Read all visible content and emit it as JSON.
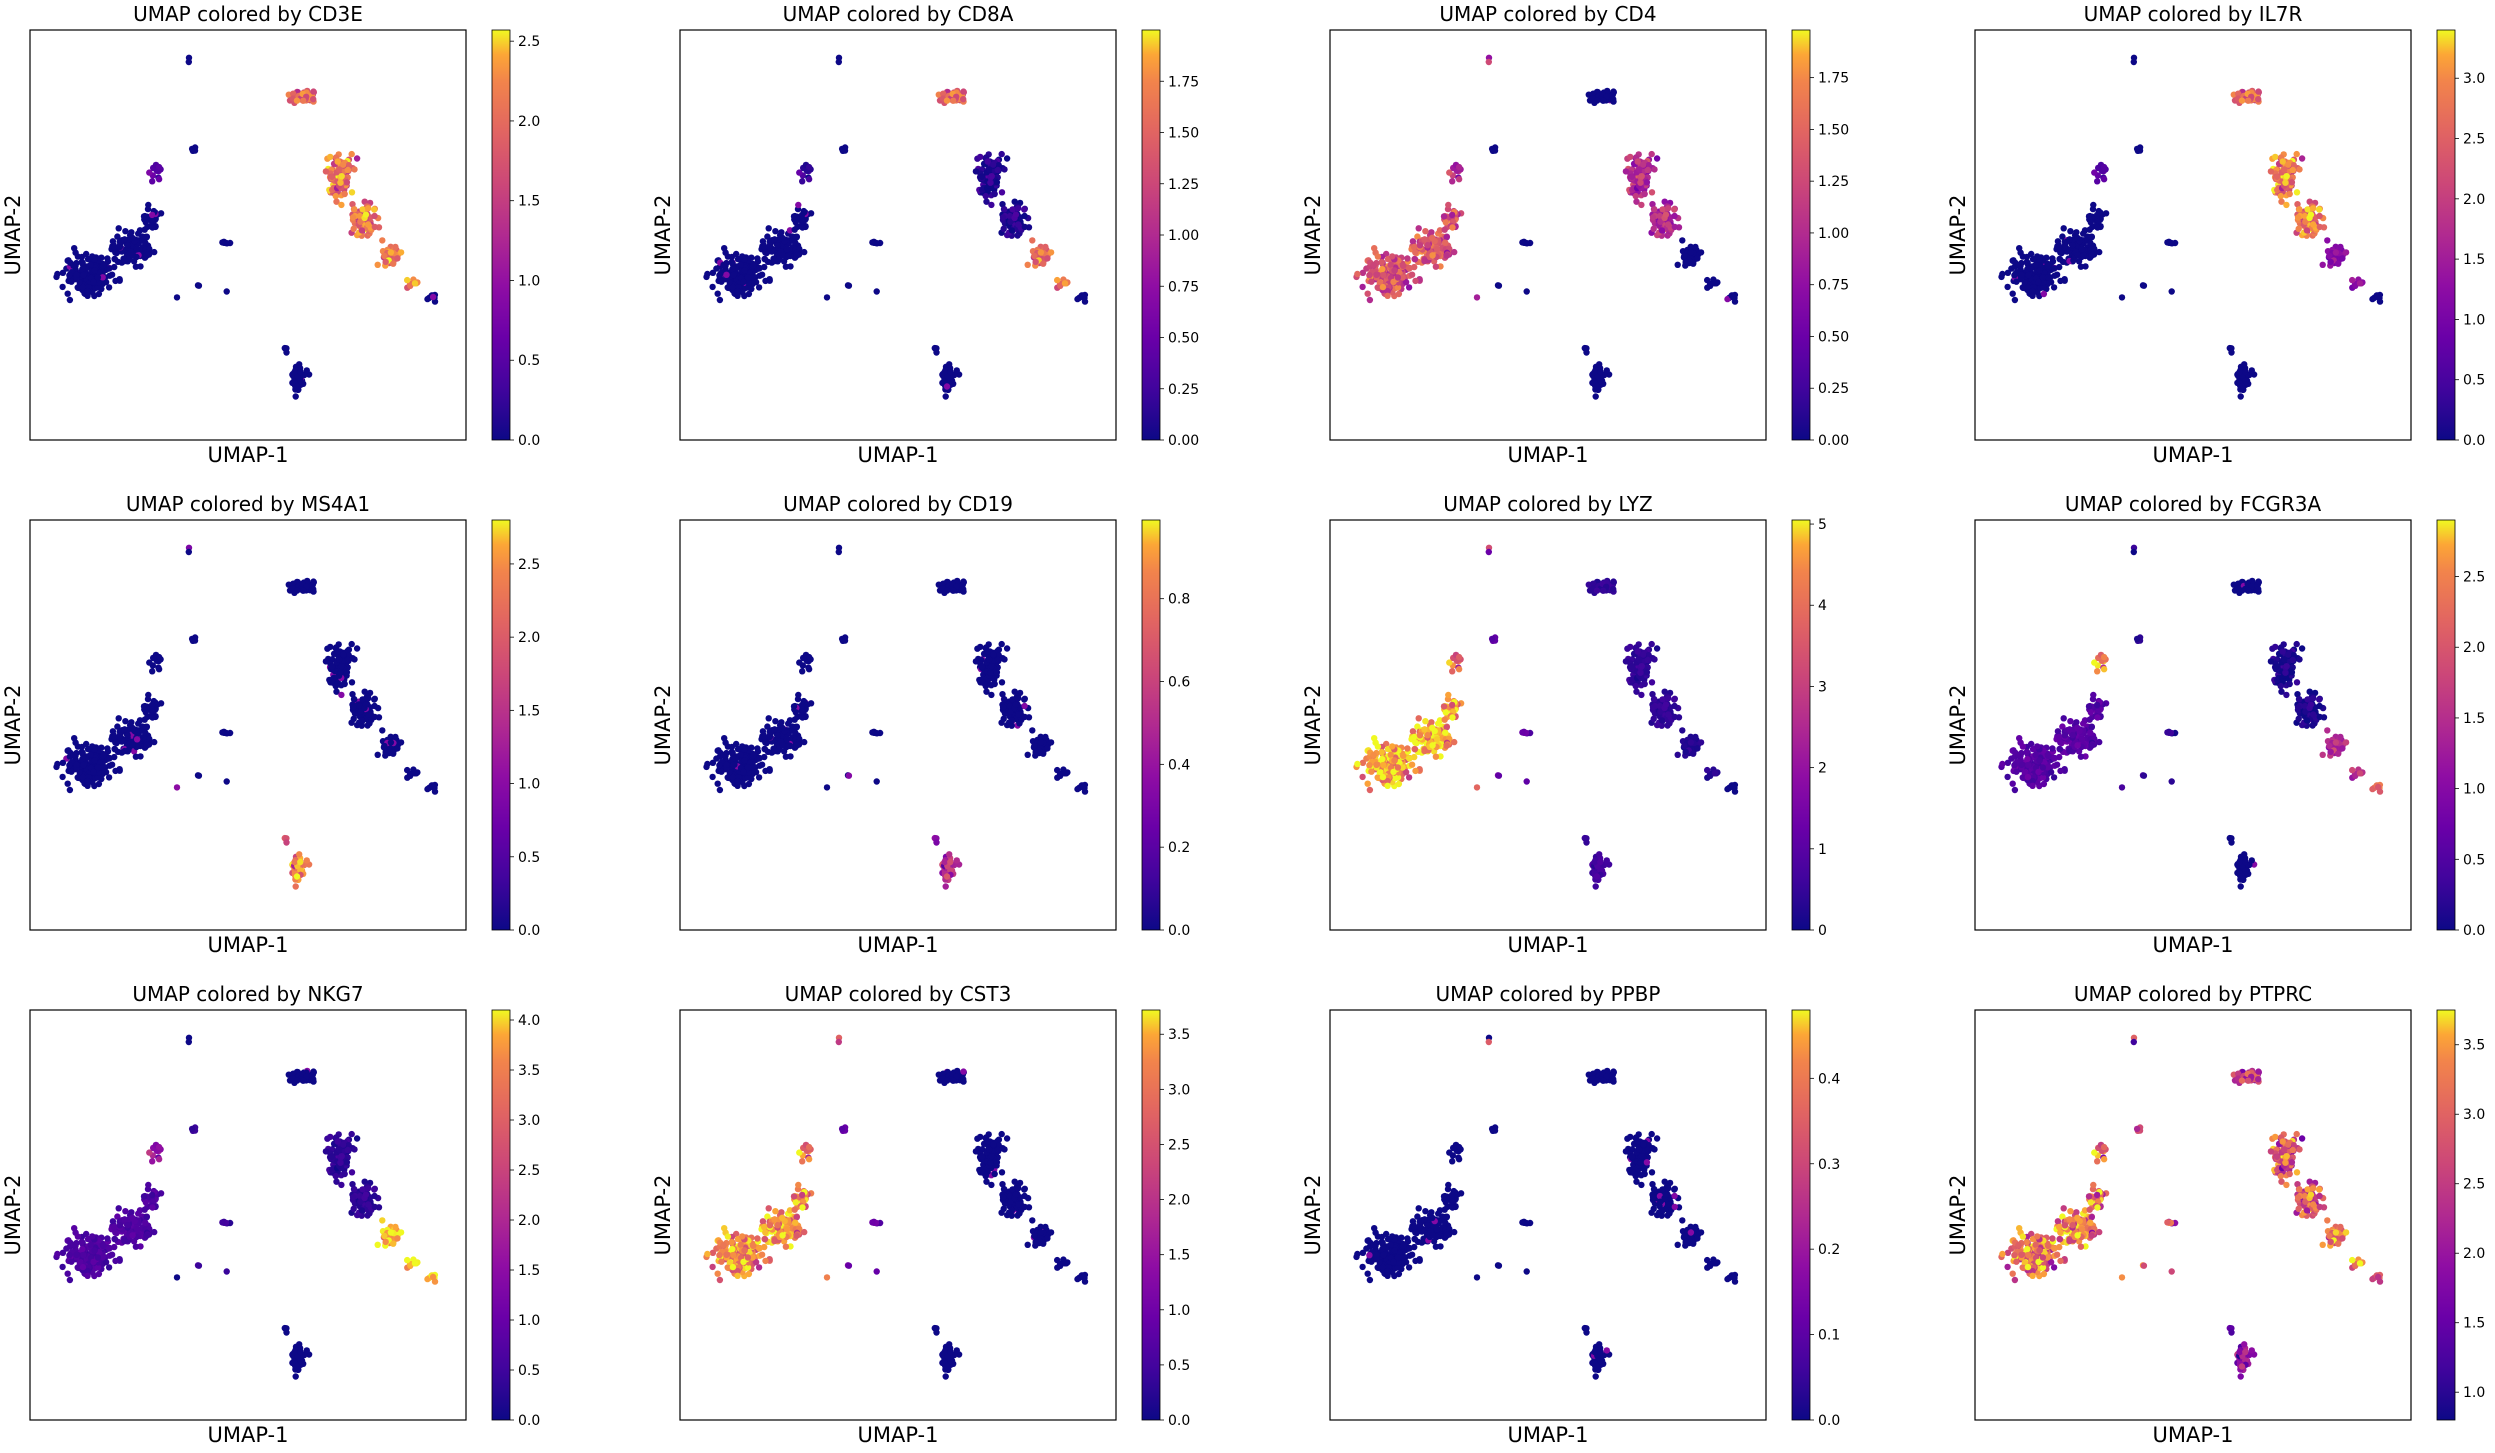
{
  "chart_data": [
    {
      "type": "scatter",
      "gene": "CD3E",
      "title": "UMAP colored by CD3E",
      "xlabel": "UMAP-1",
      "ylabel": "UMAP-2",
      "colormap": "plasma",
      "color_range": [
        0,
        2.57
      ],
      "colorbar_ticks": [
        "0.0",
        "0.5",
        "1.0",
        "1.5",
        "2.0",
        "2.5"
      ],
      "expr": {
        "big": 0.0,
        "small_top": 0.5,
        "tail": 0.0,
        "dots": 0.0,
        "platelet": 0.0,
        "nk_top": 1.8,
        "tcell": 1.9,
        "cd8": 1.8,
        "bottom": 0.0,
        "tip": 0.0
      }
    },
    {
      "type": "scatter",
      "gene": "CD8A",
      "title": "UMAP colored by CD8A",
      "xlabel": "UMAP-1",
      "ylabel": "UMAP-2",
      "colormap": "plasma",
      "color_range": [
        0,
        2.0
      ],
      "colorbar_ticks": [
        "0.00",
        "0.25",
        "0.50",
        "0.75",
        "1.00",
        "1.25",
        "1.50",
        "1.75"
      ],
      "expr": {
        "big": 0.0,
        "small_top": 0.2,
        "tail": 0.0,
        "dots": 0.0,
        "platelet": 0.0,
        "nk_top": 1.4,
        "tcell": 0.1,
        "cd8": 1.3,
        "bottom": 0.0,
        "tip": 0.0
      }
    },
    {
      "type": "scatter",
      "gene": "CD4",
      "title": "UMAP colored by CD4",
      "xlabel": "UMAP-1",
      "ylabel": "UMAP-2",
      "colormap": "plasma",
      "color_range": [
        0,
        1.98
      ],
      "colorbar_ticks": [
        "0.00",
        "0.25",
        "0.50",
        "0.75",
        "1.00",
        "1.25",
        "1.50",
        "1.75"
      ],
      "expr": {
        "big": 1.2,
        "small_top": 0.9,
        "tail": 0.0,
        "dots": 0.7,
        "platelet": 1.5,
        "nk_top": 0.0,
        "tcell": 0.9,
        "cd8": 0.0,
        "bottom": 0.0,
        "tip": 0.0
      }
    },
    {
      "type": "scatter",
      "gene": "IL7R",
      "title": "UMAP colored by IL7R",
      "xlabel": "UMAP-1",
      "ylabel": "UMAP-2",
      "colormap": "plasma",
      "color_range": [
        0,
        3.4
      ],
      "colorbar_ticks": [
        "0.0",
        "0.5",
        "1.0",
        "1.5",
        "2.0",
        "2.5",
        "3.0"
      ],
      "expr": {
        "big": 0.0,
        "small_top": 0.6,
        "tail": 0.0,
        "dots": 0.0,
        "platelet": 0.0,
        "nk_top": 2.4,
        "tcell": 2.6,
        "cd8": 1.0,
        "bottom": 0.0,
        "tip": 0.0
      }
    },
    {
      "type": "scatter",
      "gene": "MS4A1",
      "title": "UMAP colored by MS4A1",
      "xlabel": "UMAP-1",
      "ylabel": "UMAP-2",
      "colormap": "plasma",
      "color_range": [
        0,
        2.8
      ],
      "colorbar_ticks": [
        "0.0",
        "0.5",
        "1.0",
        "1.5",
        "2.0",
        "2.5"
      ],
      "expr": {
        "big": 0.0,
        "small_top": 0.0,
        "tail": 0.0,
        "dots": 0.8,
        "platelet": 0.0,
        "nk_top": 0.0,
        "tcell": 0.0,
        "cd8": 0.0,
        "bottom": 2.2,
        "tip": 0.0
      }
    },
    {
      "type": "scatter",
      "gene": "CD19",
      "title": "UMAP colored by CD19",
      "xlabel": "UMAP-1",
      "ylabel": "UMAP-2",
      "colormap": "plasma",
      "color_range": [
        0,
        0.99
      ],
      "colorbar_ticks": [
        "0.0",
        "0.2",
        "0.4",
        "0.6",
        "0.8"
      ],
      "expr": {
        "big": 0.0,
        "small_top": 0.0,
        "tail": 0.0,
        "dots": 0.0,
        "platelet": 0.0,
        "nk_top": 0.0,
        "tcell": 0.0,
        "cd8": 0.0,
        "bottom": 0.45,
        "tip": 0.0
      }
    },
    {
      "type": "scatter",
      "gene": "LYZ",
      "title": "UMAP colored by LYZ",
      "xlabel": "UMAP-1",
      "ylabel": "UMAP-2",
      "colormap": "plasma",
      "color_range": [
        0,
        5.05
      ],
      "colorbar_ticks": [
        "0",
        "1",
        "2",
        "3",
        "4",
        "5"
      ],
      "expr": {
        "big": 4.5,
        "small_top": 3.5,
        "tail": 1.0,
        "dots": 3.0,
        "platelet": 1.5,
        "nk_top": 0.4,
        "tcell": 0.4,
        "cd8": 0.2,
        "bottom": 0.6,
        "tip": 0.0
      }
    },
    {
      "type": "scatter",
      "gene": "FCGR3A",
      "title": "UMAP colored by FCGR3A",
      "xlabel": "UMAP-1",
      "ylabel": "UMAP-2",
      "colormap": "plasma",
      "color_range": [
        0,
        2.9
      ],
      "colorbar_ticks": [
        "0.0",
        "0.5",
        "1.0",
        "1.5",
        "2.0",
        "2.5"
      ],
      "expr": {
        "big": 0.5,
        "small_top": 2.4,
        "tail": 0.2,
        "dots": 0.3,
        "platelet": 0.0,
        "nk_top": 0.0,
        "tcell": 0.1,
        "cd8": 1.2,
        "bottom": 0.0,
        "tip": 2.0
      }
    },
    {
      "type": "scatter",
      "gene": "NKG7",
      "title": "UMAP colored by NKG7",
      "xlabel": "UMAP-1",
      "ylabel": "UMAP-2",
      "colormap": "plasma",
      "color_range": [
        0,
        4.1
      ],
      "colorbar_ticks": [
        "0.0",
        "0.5",
        "1.0",
        "1.5",
        "2.0",
        "2.5",
        "3.0",
        "3.5",
        "4.0"
      ],
      "expr": {
        "big": 0.6,
        "small_top": 1.5,
        "tail": 0.4,
        "dots": 0.0,
        "platelet": 0.0,
        "nk_top": 0.0,
        "tcell": 0.3,
        "cd8": 3.6,
        "bottom": 0.0,
        "tip": 3.8
      }
    },
    {
      "type": "scatter",
      "gene": "CST3",
      "title": "UMAP colored by CST3",
      "xlabel": "UMAP-1",
      "ylabel": "UMAP-2",
      "colormap": "plasma",
      "color_range": [
        0,
        3.72
      ],
      "colorbar_ticks": [
        "0.0",
        "0.5",
        "1.0",
        "1.5",
        "2.0",
        "2.5",
        "3.0",
        "3.5"
      ],
      "expr": {
        "big": 3.0,
        "small_top": 2.8,
        "tail": 0.8,
        "dots": 2.5,
        "platelet": 2.5,
        "nk_top": 0.0,
        "tcell": 0.0,
        "cd8": 0.0,
        "bottom": 0.0,
        "tip": 0.0
      }
    },
    {
      "type": "scatter",
      "gene": "PPBP",
      "title": "UMAP colored by PPBP",
      "xlabel": "UMAP-1",
      "ylabel": "UMAP-2",
      "colormap": "plasma",
      "color_range": [
        0,
        0.48
      ],
      "colorbar_ticks": [
        "0.0",
        "0.1",
        "0.2",
        "0.3",
        "0.4"
      ],
      "expr": {
        "big": 0.0,
        "small_top": 0.0,
        "tail": 0.0,
        "dots": 0.0,
        "platelet": 0.45,
        "nk_top": 0.0,
        "tcell": 0.0,
        "cd8": 0.0,
        "bottom": 0.0,
        "tip": 0.0
      }
    },
    {
      "type": "scatter",
      "gene": "PTPRC",
      "title": "UMAP colored by PTPRC",
      "xlabel": "UMAP-1",
      "ylabel": "UMAP-2",
      "colormap": "plasma",
      "color_range": [
        0.8,
        3.75
      ],
      "colorbar_ticks": [
        "1.0",
        "1.5",
        "2.0",
        "2.5",
        "3.0",
        "3.5"
      ],
      "expr": {
        "big": 3.0,
        "small_top": 3.0,
        "tail": 2.5,
        "dots": 2.8,
        "platelet": 1.5,
        "nk_top": 2.4,
        "tcell": 2.7,
        "cd8": 2.8,
        "bottom": 1.8,
        "tip": 2.5
      }
    }
  ]
}
